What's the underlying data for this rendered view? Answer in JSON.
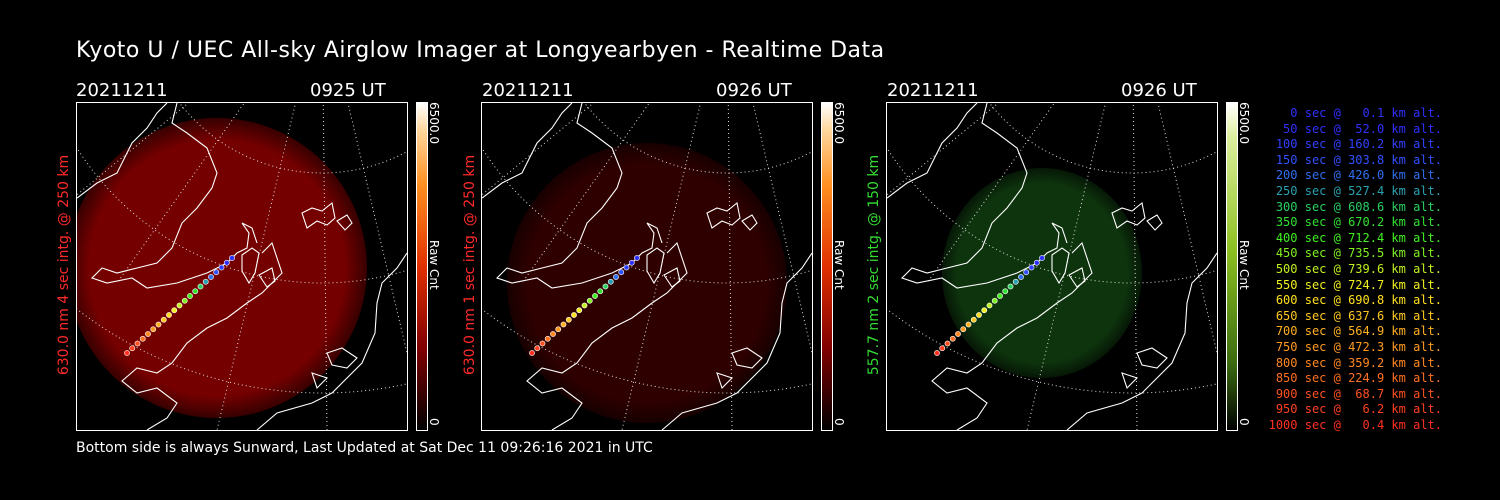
{
  "title": "Kyoto U / UEC All-sky Airglow Imager at Longyearbyen - Realtime Data",
  "footer": "Bottom side is always Sunward, Last Updated at Sat Dec 11 09:26:16 2021 in UTC",
  "panels": [
    {
      "date": "20211211",
      "time": "0925 UT",
      "side": "630.0 nm 4 sec intg. @ 250 km",
      "side_color": "#ff2a2a",
      "glow": "#8a0000",
      "glow_opacity": 0.85,
      "cbar_max": "6500.0",
      "cbar_min": "0",
      "cbar_label": "Raw Cnt",
      "cbar_type": "red"
    },
    {
      "date": "20211211",
      "time": "0926 UT",
      "side": "630.0 nm 1 sec intg. @ 250 km",
      "side_color": "#ff2a2a",
      "glow": "#3a0000",
      "glow_opacity": 0.8,
      "cbar_max": "6500.0",
      "cbar_min": "0",
      "cbar_label": "Raw Cnt",
      "cbar_type": "red"
    },
    {
      "date": "20211211",
      "time": "0926 UT",
      "side": "557.7 nm 2 sec intg. @ 150 km",
      "side_color": "#33dd33",
      "glow": "#0f3a0f",
      "glow_opacity": 0.9,
      "cbar_max": "6500.0",
      "cbar_min": "0",
      "cbar_label": "Raw Cnt",
      "cbar_type": "green"
    }
  ],
  "legend": [
    {
      "text": "   0 sec @   0.1 km alt.",
      "color": "#3030ff"
    },
    {
      "text": "  50 sec @  52.0 km alt.",
      "color": "#3030ff"
    },
    {
      "text": " 100 sec @ 160.2 km alt.",
      "color": "#3040ff"
    },
    {
      "text": " 150 sec @ 303.8 km alt.",
      "color": "#3050ff"
    },
    {
      "text": " 200 sec @ 426.0 km alt.",
      "color": "#2f6ff0"
    },
    {
      "text": " 250 sec @ 527.4 km alt.",
      "color": "#2aa0b0"
    },
    {
      "text": " 300 sec @ 608.6 km alt.",
      "color": "#2ad060"
    },
    {
      "text": " 350 sec @ 670.2 km alt.",
      "color": "#30e030"
    },
    {
      "text": " 400 sec @ 712.4 km alt.",
      "color": "#40f020"
    },
    {
      "text": " 450 sec @ 735.5 km alt.",
      "color": "#80f020"
    },
    {
      "text": " 500 sec @ 739.6 km alt.",
      "color": "#c0f020"
    },
    {
      "text": " 550 sec @ 724.7 km alt.",
      "color": "#f0f020"
    },
    {
      "text": " 600 sec @ 690.8 km alt.",
      "color": "#ffe020"
    },
    {
      "text": " 650 sec @ 637.6 km alt.",
      "color": "#ffc820"
    },
    {
      "text": " 700 sec @ 564.9 km alt.",
      "color": "#ffb020"
    },
    {
      "text": " 750 sec @ 472.3 km alt.",
      "color": "#ff9a20"
    },
    {
      "text": " 800 sec @ 359.2 km alt.",
      "color": "#ff8820"
    },
    {
      "text": " 850 sec @ 224.9 km alt.",
      "color": "#ff7020"
    },
    {
      "text": " 900 sec @  68.7 km alt.",
      "color": "#ff5020"
    },
    {
      "text": " 950 sec @   6.2 km alt.",
      "color": "#ff4020"
    },
    {
      "text": "1000 sec @   0.4 km alt.",
      "color": "#ff3020"
    }
  ]
}
